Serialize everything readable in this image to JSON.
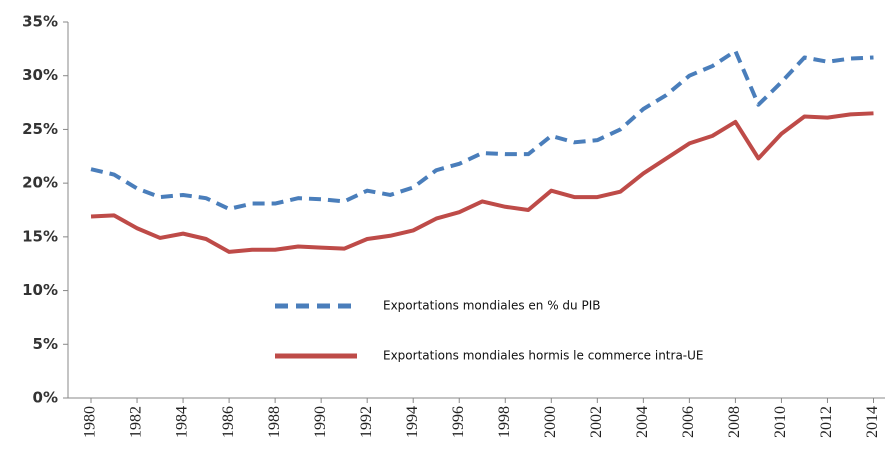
{
  "chart_data": {
    "type": "line",
    "x": [
      1980,
      1981,
      1982,
      1983,
      1984,
      1985,
      1986,
      1987,
      1988,
      1989,
      1990,
      1991,
      1992,
      1993,
      1994,
      1995,
      1996,
      1997,
      1998,
      1999,
      2000,
      2001,
      2002,
      2003,
      2004,
      2005,
      2006,
      2007,
      2008,
      2009,
      2010,
      2011,
      2012,
      2013,
      2014
    ],
    "series": [
      {
        "name": "Exportations mondiales en % du PIB",
        "color": "#4a7ebb",
        "dash": true,
        "values": [
          21.3,
          20.8,
          19.5,
          18.7,
          18.9,
          18.6,
          17.6,
          18.1,
          18.1,
          18.6,
          18.5,
          18.3,
          19.3,
          18.9,
          19.6,
          21.2,
          21.8,
          22.8,
          22.7,
          22.7,
          24.4,
          23.8,
          24.0,
          25.0,
          26.9,
          28.2,
          30.0,
          30.9,
          32.3,
          27.3,
          29.4,
          31.7,
          31.3,
          31.6,
          31.7
        ]
      },
      {
        "name": "Exportations mondiales hormis le commerce intra-UE",
        "color": "#be4b48",
        "dash": false,
        "values": [
          16.9,
          17.0,
          15.8,
          14.9,
          15.3,
          14.8,
          13.6,
          13.8,
          13.8,
          14.1,
          14.0,
          13.9,
          14.8,
          15.1,
          15.6,
          16.7,
          17.3,
          18.3,
          17.8,
          17.5,
          19.3,
          18.7,
          18.7,
          19.2,
          20.9,
          22.3,
          23.7,
          24.4,
          25.7,
          22.3,
          24.6,
          26.2,
          26.1,
          26.4,
          26.5
        ]
      }
    ],
    "xlim": [
      1979,
      2014.5
    ],
    "xticks": [
      1980,
      1982,
      1984,
      1986,
      1988,
      1990,
      1992,
      1994,
      1996,
      1998,
      2000,
      2002,
      2004,
      2006,
      2008,
      2010,
      2012,
      2014
    ],
    "ylim": [
      0,
      35
    ],
    "yticks": [
      {
        "value": 0,
        "label": "0%"
      },
      {
        "value": 5,
        "label": "5%"
      },
      {
        "value": 10,
        "label": "10%"
      },
      {
        "value": 15,
        "label": "15%"
      },
      {
        "value": 20,
        "label": "20%"
      },
      {
        "value": 25,
        "label": "25%"
      },
      {
        "value": 30,
        "label": "30%"
      },
      {
        "value": 35,
        "label": "35%"
      }
    ],
    "grid": false,
    "legend": "lower center"
  }
}
